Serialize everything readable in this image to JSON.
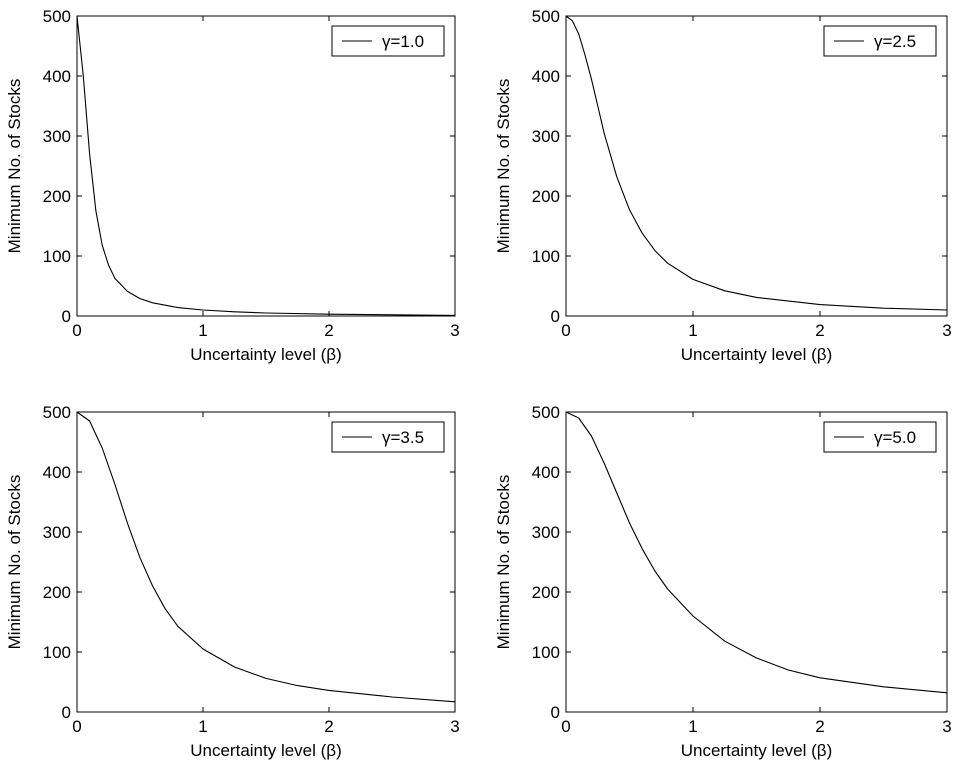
{
  "chart_data": [
    {
      "type": "line",
      "xlabel": "Uncertainty level (β)",
      "ylabel": "Minimum No. of Stocks",
      "xlim": [
        0,
        3
      ],
      "ylim": [
        0,
        500
      ],
      "xticks": [
        "0",
        "1",
        "2",
        "3"
      ],
      "yticks": [
        "0",
        "100",
        "200",
        "300",
        "400",
        "500"
      ],
      "grid": false,
      "legend_position": "top-right",
      "series": [
        {
          "name": "γ=1.0",
          "x": [
            0,
            0.05,
            0.1,
            0.15,
            0.2,
            0.25,
            0.3,
            0.4,
            0.5,
            0.6,
            0.8,
            1.0,
            1.25,
            1.5,
            2.0,
            2.5,
            3.0
          ],
          "y": [
            500,
            400,
            270,
            175,
            118,
            85,
            63,
            41,
            29,
            22,
            14,
            10,
            7,
            5,
            3,
            2,
            1
          ]
        }
      ]
    },
    {
      "type": "line",
      "xlabel": "Uncertainty level (β)",
      "ylabel": "Minimum No. of Stocks",
      "xlim": [
        0,
        3
      ],
      "ylim": [
        0,
        500
      ],
      "xticks": [
        "0",
        "1",
        "2",
        "3"
      ],
      "yticks": [
        "0",
        "100",
        "200",
        "300",
        "400",
        "500"
      ],
      "grid": false,
      "legend_position": "top-right",
      "series": [
        {
          "name": "γ=2.5",
          "x": [
            0,
            0.05,
            0.1,
            0.15,
            0.2,
            0.25,
            0.3,
            0.4,
            0.5,
            0.6,
            0.7,
            0.8,
            1.0,
            1.25,
            1.5,
            2.0,
            2.5,
            3.0
          ],
          "y": [
            500,
            492,
            470,
            435,
            395,
            350,
            305,
            232,
            177,
            138,
            109,
            88,
            61,
            42,
            31,
            19,
            13,
            10
          ]
        }
      ]
    },
    {
      "type": "line",
      "xlabel": "Uncertainty level (β)",
      "ylabel": "Minimum No. of Stocks",
      "xlim": [
        0,
        3
      ],
      "ylim": [
        0,
        500
      ],
      "xticks": [
        "0",
        "1",
        "2",
        "3"
      ],
      "yticks": [
        "0",
        "100",
        "200",
        "300",
        "400",
        "500"
      ],
      "grid": false,
      "legend_position": "top-right",
      "series": [
        {
          "name": "γ=3.5",
          "x": [
            0,
            0.1,
            0.2,
            0.3,
            0.4,
            0.5,
            0.6,
            0.7,
            0.8,
            1.0,
            1.25,
            1.5,
            1.75,
            2.0,
            2.5,
            3.0
          ],
          "y": [
            500,
            485,
            440,
            380,
            315,
            257,
            210,
            172,
            143,
            105,
            75,
            56,
            44,
            36,
            25,
            17
          ]
        }
      ]
    },
    {
      "type": "line",
      "xlabel": "Uncertainty level (β)",
      "ylabel": "Minimum No. of Stocks",
      "xlim": [
        0,
        3
      ],
      "ylim": [
        0,
        500
      ],
      "xticks": [
        "0",
        "1",
        "2",
        "3"
      ],
      "yticks": [
        "0",
        "100",
        "200",
        "300",
        "400",
        "500"
      ],
      "grid": false,
      "legend_position": "top-right",
      "series": [
        {
          "name": "γ=5.0",
          "x": [
            0,
            0.1,
            0.2,
            0.3,
            0.4,
            0.5,
            0.6,
            0.7,
            0.8,
            1.0,
            1.25,
            1.5,
            1.75,
            2.0,
            2.5,
            3.0
          ],
          "y": [
            500,
            490,
            460,
            415,
            365,
            315,
            272,
            235,
            205,
            160,
            118,
            90,
            70,
            57,
            42,
            32
          ]
        }
      ]
    }
  ]
}
